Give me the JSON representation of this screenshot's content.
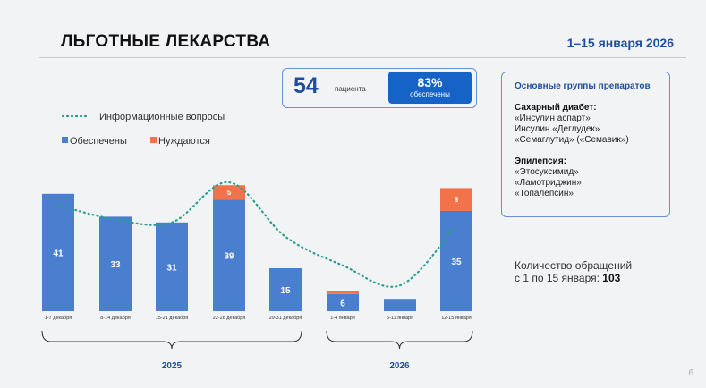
{
  "header": {
    "title": "ЛЬГОТНЫЕ ЛЕКАРСТВА",
    "period": "1–15 января 2026"
  },
  "kpi": {
    "patients_count": "54",
    "patients_label": "пациента",
    "provided_pct": "83%",
    "provided_label": "обеспечены"
  },
  "drug_groups": {
    "heading": "Основные группы препаратов",
    "groups": [
      {
        "category": "Сахарный диабет:",
        "items": [
          "«Инсулин аспарт»",
          "Инсулин «Деглудек»",
          "«Семаглутид» («Семавик»)"
        ]
      },
      {
        "category": "Эпилепсия:",
        "items": [
          "«Этосуксимид»",
          "«Ламотриджин»",
          "«Топалепсин»"
        ]
      }
    ]
  },
  "requests": {
    "line1": "Количество обращений",
    "line2": "с 1 по 15 января:",
    "value": "103"
  },
  "page_number": "6",
  "colors": {
    "provided": "#4a7fd0",
    "needed": "#f2734a",
    "trend": "#2a9d8f",
    "accent": "#1f4e9c"
  },
  "chart_data": {
    "type": "bar",
    "stacked": true,
    "categories": [
      "1-7 декабря",
      "8-14 декабря",
      "15-21 декабря",
      "22-28 декабря",
      "29-31 декабря",
      "1-4 января",
      "5-11 января",
      "12-15 января"
    ],
    "series": [
      {
        "name": "Обеспечены",
        "values": [
          41,
          33,
          31,
          39,
          15,
          6,
          4,
          35
        ]
      },
      {
        "name": "Нуждаются",
        "values": [
          0,
          0,
          0,
          5,
          0,
          1,
          0,
          8
        ]
      }
    ],
    "line_series": {
      "name": "Информационные вопросы",
      "style": "dotted-smooth",
      "values": [
        37,
        32,
        31,
        45,
        26,
        16,
        9,
        30
      ]
    },
    "groups": [
      {
        "label": "2025",
        "from": 0,
        "to": 4
      },
      {
        "label": "2026",
        "from": 5,
        "to": 7
      }
    ],
    "ylim": [
      0,
      55
    ],
    "legend_position": "top-left",
    "grid": false
  }
}
